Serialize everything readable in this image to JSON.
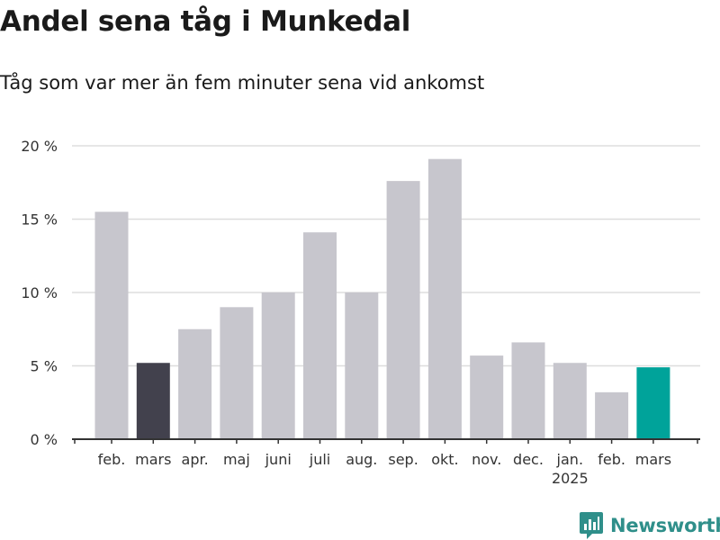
{
  "header": {
    "title": "Andel sena tåg i Munkedal",
    "subtitle": "Tåg som var mer än fem minuter sena vid ankomst"
  },
  "brand": {
    "name": "Newsworthy",
    "icon": "newsworthy-logo-icon",
    "color": "#2f8f8a"
  },
  "chart_data": {
    "type": "bar",
    "categories": [
      "feb.",
      "mars",
      "apr.",
      "maj",
      "juni",
      "juli",
      "aug.",
      "sep.",
      "okt.",
      "nov.",
      "dec.",
      "jan.",
      "feb.",
      "mars"
    ],
    "category_sublabels": [
      "",
      "",
      "",
      "",
      "",
      "",
      "",
      "",
      "",
      "",
      "",
      "2025",
      "",
      ""
    ],
    "values": [
      15.5,
      5.2,
      7.5,
      9.0,
      10.0,
      14.1,
      10.0,
      17.6,
      19.1,
      5.7,
      6.6,
      5.2,
      3.2,
      4.9
    ],
    "highlight": [
      "none",
      "dark",
      "none",
      "none",
      "none",
      "none",
      "none",
      "none",
      "none",
      "none",
      "none",
      "none",
      "none",
      "accent"
    ],
    "colors": {
      "default": "#c7c6cd",
      "dark": "#42414d",
      "accent": "#00a39a",
      "grid": "#dddddd",
      "axis": "#333333"
    },
    "y_ticks": [
      "0 %",
      "5 %",
      "10 %",
      "15 %",
      "20 %"
    ],
    "y_tick_values": [
      0,
      5,
      10,
      15,
      20
    ],
    "ylim": [
      0,
      20
    ],
    "grid": true,
    "legend": "none"
  }
}
